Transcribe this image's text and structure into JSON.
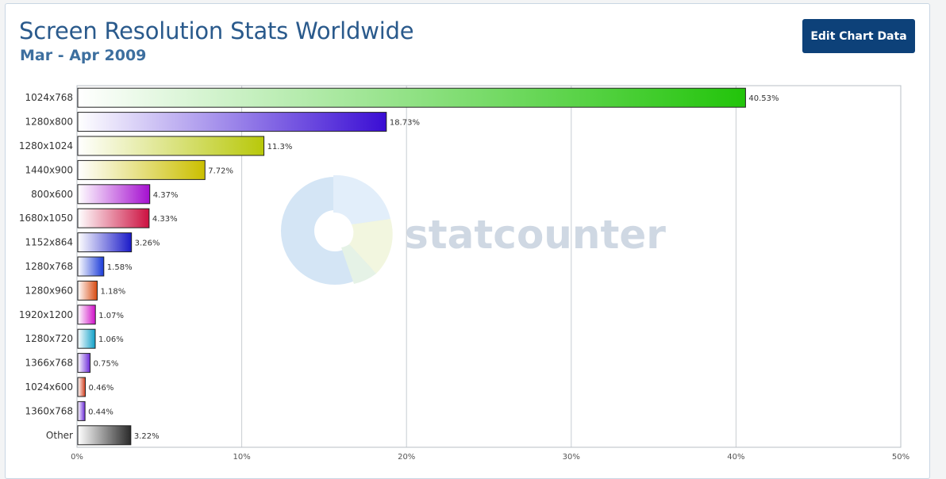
{
  "header": {
    "title": "Screen Resolution Stats Worldwide",
    "subtitle": "Mar - Apr 2009",
    "edit_button_label": "Edit Chart Data"
  },
  "watermark": {
    "text": "statcounter"
  },
  "chart_data": {
    "type": "bar",
    "orientation": "horizontal",
    "title": "Screen Resolution Stats Worldwide",
    "subtitle": "Mar - Apr 2009",
    "xlabel": "",
    "ylabel": "",
    "xlim": [
      0,
      50
    ],
    "x_ticks": [
      0,
      10,
      20,
      30,
      40,
      50
    ],
    "x_tick_labels": [
      "0%",
      "10%",
      "20%",
      "30%",
      "40%",
      "50%"
    ],
    "value_suffix": "%",
    "grid": true,
    "categories": [
      "1024x768",
      "1280x800",
      "1280x1024",
      "1440x900",
      "800x600",
      "1680x1050",
      "1152x864",
      "1280x768",
      "1280x960",
      "1920x1200",
      "1280x720",
      "1366x768",
      "1024x600",
      "1360x768",
      "Other"
    ],
    "values": [
      40.53,
      18.73,
      11.3,
      7.72,
      4.37,
      4.33,
      3.26,
      1.58,
      1.18,
      1.07,
      1.06,
      0.75,
      0.46,
      0.44,
      3.22
    ],
    "value_labels": [
      "40.53%",
      "18.73%",
      "11.3%",
      "7.72%",
      "4.37%",
      "4.33%",
      "3.26%",
      "1.58%",
      "1.18%",
      "1.07%",
      "1.06%",
      "0.75%",
      "0.46%",
      "0.44%",
      "3.22%"
    ],
    "colors": [
      "#22c40a",
      "#3a0dd4",
      "#b8c80a",
      "#cbbf00",
      "#a50fd0",
      "#cc1040",
      "#1a1ac8",
      "#1a3ad8",
      "#d84a10",
      "#d010c8",
      "#10a0c8",
      "#6a28d8",
      "#d03a1a",
      "#6a28d8",
      "#2a2a2a"
    ]
  }
}
